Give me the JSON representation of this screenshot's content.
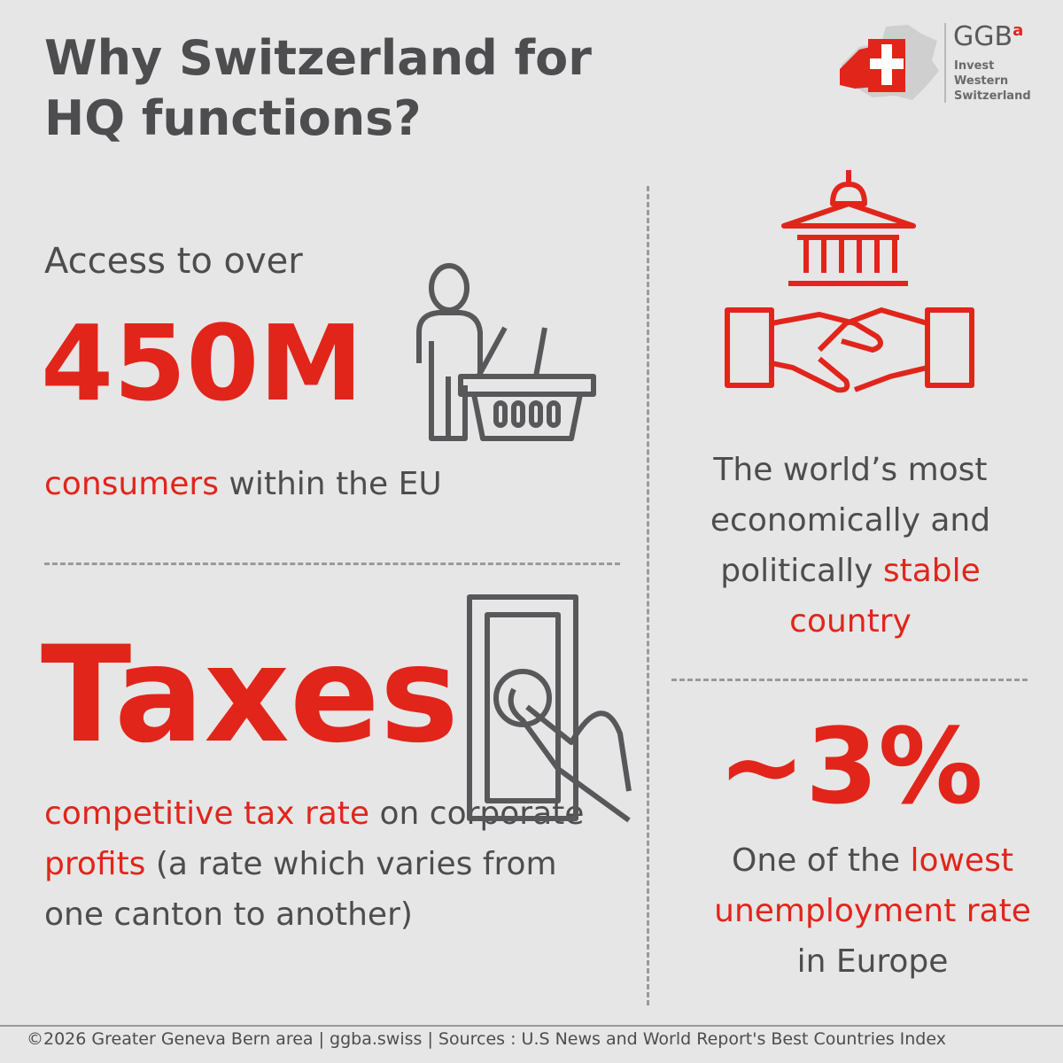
{
  "header": {
    "title": "Why Switzerland for HQ functions?",
    "logo": {
      "name": "GGB",
      "superscript": "a",
      "tagline": [
        "Invest",
        "Western",
        "Switzerland"
      ]
    }
  },
  "sections": [
    {
      "intro": "Access to over",
      "headline": "450M",
      "caption": [
        {
          "text": "consumers",
          "accent": true
        },
        {
          "text": " within the EU",
          "accent": false
        }
      ]
    },
    {
      "headline": "Taxes",
      "caption": [
        {
          "text": "competitive tax rate",
          "accent": true
        },
        {
          "text": " on corporate ",
          "accent": false
        },
        {
          "text": "profits",
          "accent": true
        },
        {
          "text": " (a rate which varies from one canton to another)",
          "accent": false
        }
      ]
    },
    {
      "caption": [
        {
          "text": "The world’s most economically and politically ",
          "accent": false
        },
        {
          "text": "stable country",
          "accent": true
        }
      ]
    },
    {
      "headline": "~3%",
      "caption": [
        {
          "text": "One of the ",
          "accent": false
        },
        {
          "text": "lowest unemployment rate",
          "accent": true
        },
        {
          "text": " in Europe",
          "accent": false
        }
      ]
    }
  ],
  "footer": "©2026 Greater Geneva Bern area | ggba.swiss | Sources : U.S News and World Report's Best Countries Index"
}
